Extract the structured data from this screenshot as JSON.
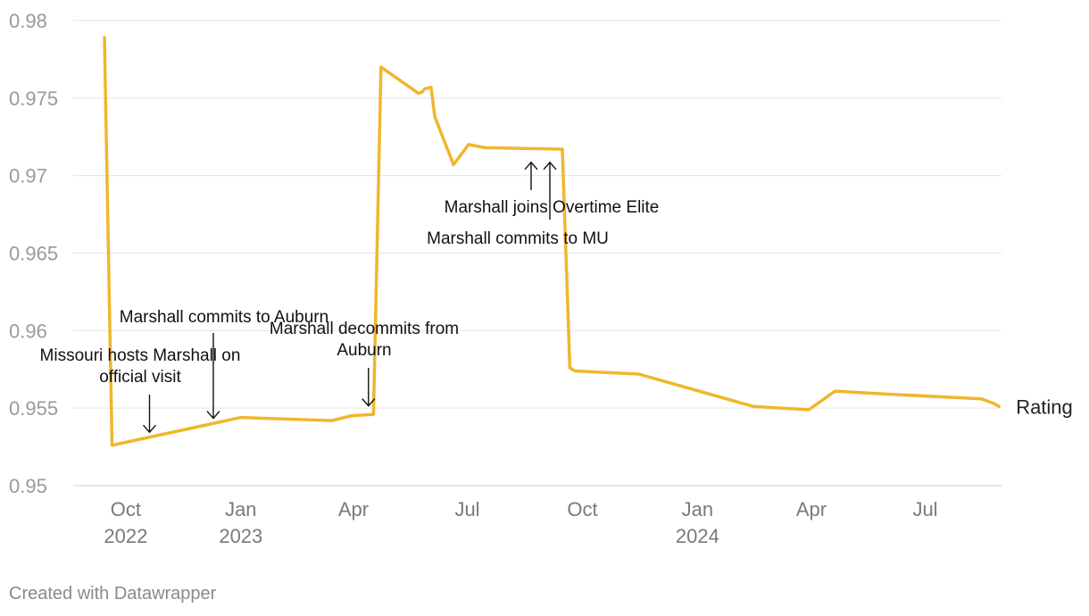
{
  "chart_data": {
    "type": "line",
    "title": "",
    "xlabel": "",
    "ylabel": "",
    "ylim": [
      0.95,
      0.98
    ],
    "y_ticks": [
      0.95,
      0.955,
      0.96,
      0.965,
      0.97,
      0.975,
      0.98
    ],
    "y_tick_labels": [
      "0.95",
      "0.955",
      "0.96",
      "0.965",
      "0.97",
      "0.975",
      "0.98"
    ],
    "x_range": [
      "2022-08-20",
      "2024-08-31"
    ],
    "x_ticks": [
      {
        "date": "2022-10-01",
        "line1": "Oct",
        "line2": "2022"
      },
      {
        "date": "2023-01-01",
        "line1": "Jan",
        "line2": "2023"
      },
      {
        "date": "2023-04-01",
        "line1": "Apr",
        "line2": ""
      },
      {
        "date": "2023-07-01",
        "line1": "Jul",
        "line2": ""
      },
      {
        "date": "2023-10-01",
        "line1": "Oct",
        "line2": ""
      },
      {
        "date": "2024-01-01",
        "line1": "Jan",
        "line2": "2024"
      },
      {
        "date": "2024-04-01",
        "line1": "Apr",
        "line2": ""
      },
      {
        "date": "2024-07-01",
        "line1": "Jul",
        "line2": ""
      }
    ],
    "grid": true,
    "series": [
      {
        "name": "Rating",
        "color": "#f0b62c",
        "points": [
          {
            "x": "2022-09-14",
            "y": 0.9789
          },
          {
            "x": "2022-09-20",
            "y": 0.9526
          },
          {
            "x": "2023-01-01",
            "y": 0.9544
          },
          {
            "x": "2023-03-15",
            "y": 0.9542
          },
          {
            "x": "2023-03-30",
            "y": 0.9545
          },
          {
            "x": "2023-04-17",
            "y": 0.9546
          },
          {
            "x": "2023-04-23",
            "y": 0.977
          },
          {
            "x": "2023-05-23",
            "y": 0.9753
          },
          {
            "x": "2023-05-26",
            "y": 0.9754
          },
          {
            "x": "2023-05-28",
            "y": 0.9756
          },
          {
            "x": "2023-06-02",
            "y": 0.9757
          },
          {
            "x": "2023-06-05",
            "y": 0.9738
          },
          {
            "x": "2023-06-20",
            "y": 0.9707
          },
          {
            "x": "2023-07-02",
            "y": 0.972
          },
          {
            "x": "2023-07-15",
            "y": 0.9718
          },
          {
            "x": "2023-09-15",
            "y": 0.9717
          },
          {
            "x": "2023-09-21",
            "y": 0.9576
          },
          {
            "x": "2023-09-25",
            "y": 0.9574
          },
          {
            "x": "2023-11-15",
            "y": 0.9572
          },
          {
            "x": "2024-02-15",
            "y": 0.9551
          },
          {
            "x": "2024-03-30",
            "y": 0.9549
          },
          {
            "x": "2024-04-20",
            "y": 0.9561
          },
          {
            "x": "2024-06-01",
            "y": 0.9559
          },
          {
            "x": "2024-08-15",
            "y": 0.9556
          },
          {
            "x": "2024-08-25",
            "y": 0.9553
          },
          {
            "x": "2024-08-29",
            "y": 0.9551
          }
        ]
      }
    ],
    "annotations": [
      {
        "text": "Missouri hosts Marshall on official visit",
        "lines": [
          "Missouri hosts Marshall on",
          "official visit"
        ],
        "target_x": "2022-10-20",
        "target_y": 0.9531,
        "arrow": "down"
      },
      {
        "text": "Marshall commits to Auburn",
        "lines": [
          "Marshall commits to Auburn"
        ],
        "target_x": "2022-12-10",
        "target_y": 0.954,
        "arrow": "down"
      },
      {
        "text": "Marshall decommits from Auburn",
        "lines": [
          "Marshall decommits from",
          "Auburn"
        ],
        "target_x": "2023-04-13",
        "target_y": 0.9548,
        "arrow": "down"
      },
      {
        "text": "Marshall joins Overtime Elite",
        "lines": [
          "Marshall joins Overtime Elite"
        ],
        "target_x": "2023-08-21",
        "target_y": 0.9712,
        "arrow": "up"
      },
      {
        "text": "Marshall commits to MU",
        "lines": [
          "Marshall commits to MU"
        ],
        "target_x": "2023-09-05",
        "target_y": 0.9712,
        "arrow": "up"
      }
    ]
  },
  "footer": {
    "credit": "Created with Datawrapper"
  }
}
